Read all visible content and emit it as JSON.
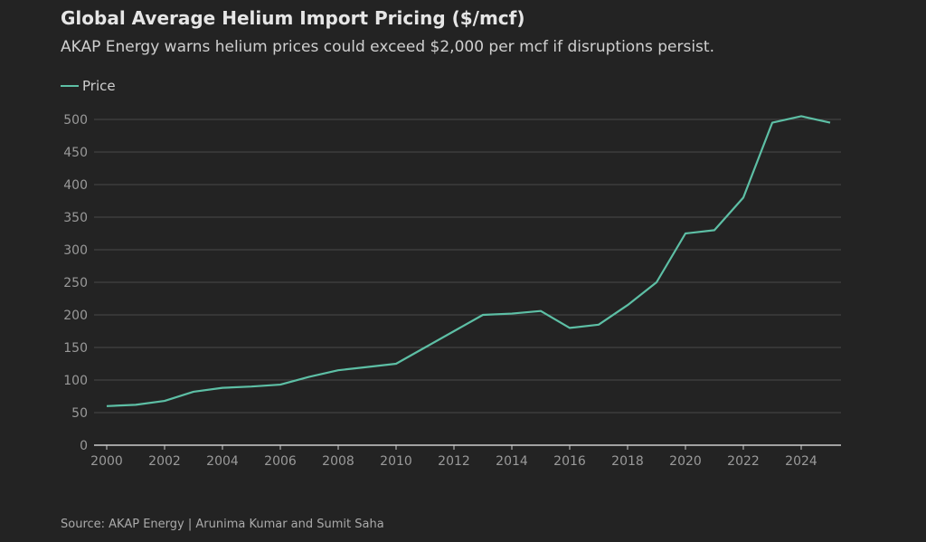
{
  "chart_data": {
    "type": "line",
    "title": "Global Average Helium Import Pricing ($/mcf)",
    "subtitle": "AKAP Energy warns helium prices could exceed $2,000 per mcf if disruptions persist.",
    "source": "Source: AKAP Energy | Arunima Kumar and Sumit Saha",
    "xlabel": "",
    "ylabel": "",
    "xlim": [
      2000,
      2025
    ],
    "ylim": [
      0,
      500
    ],
    "x_ticks": [
      2000,
      2002,
      2004,
      2006,
      2008,
      2010,
      2012,
      2014,
      2016,
      2018,
      2020,
      2022,
      2024
    ],
    "y_ticks": [
      0,
      50,
      100,
      150,
      200,
      250,
      300,
      350,
      400,
      450,
      500
    ],
    "grid": "horizontal",
    "legend": "top-left",
    "x": [
      2000,
      2001,
      2002,
      2003,
      2004,
      2005,
      2006,
      2007,
      2008,
      2009,
      2010,
      2011,
      2012,
      2013,
      2014,
      2015,
      2016,
      2017,
      2018,
      2019,
      2020,
      2021,
      2022,
      2023,
      2024,
      2025
    ],
    "series": [
      {
        "name": "Price",
        "color": "#5dbfa5",
        "values": [
          60,
          62,
          68,
          82,
          88,
          90,
          93,
          105,
          115,
          120,
          125,
          150,
          175,
          200,
          202,
          206,
          180,
          185,
          215,
          250,
          325,
          330,
          380,
          495,
          505,
          495
        ]
      }
    ]
  },
  "colors": {
    "background": "#232323",
    "grid": "#4a4a4a",
    "axis": "#cccccc"
  }
}
